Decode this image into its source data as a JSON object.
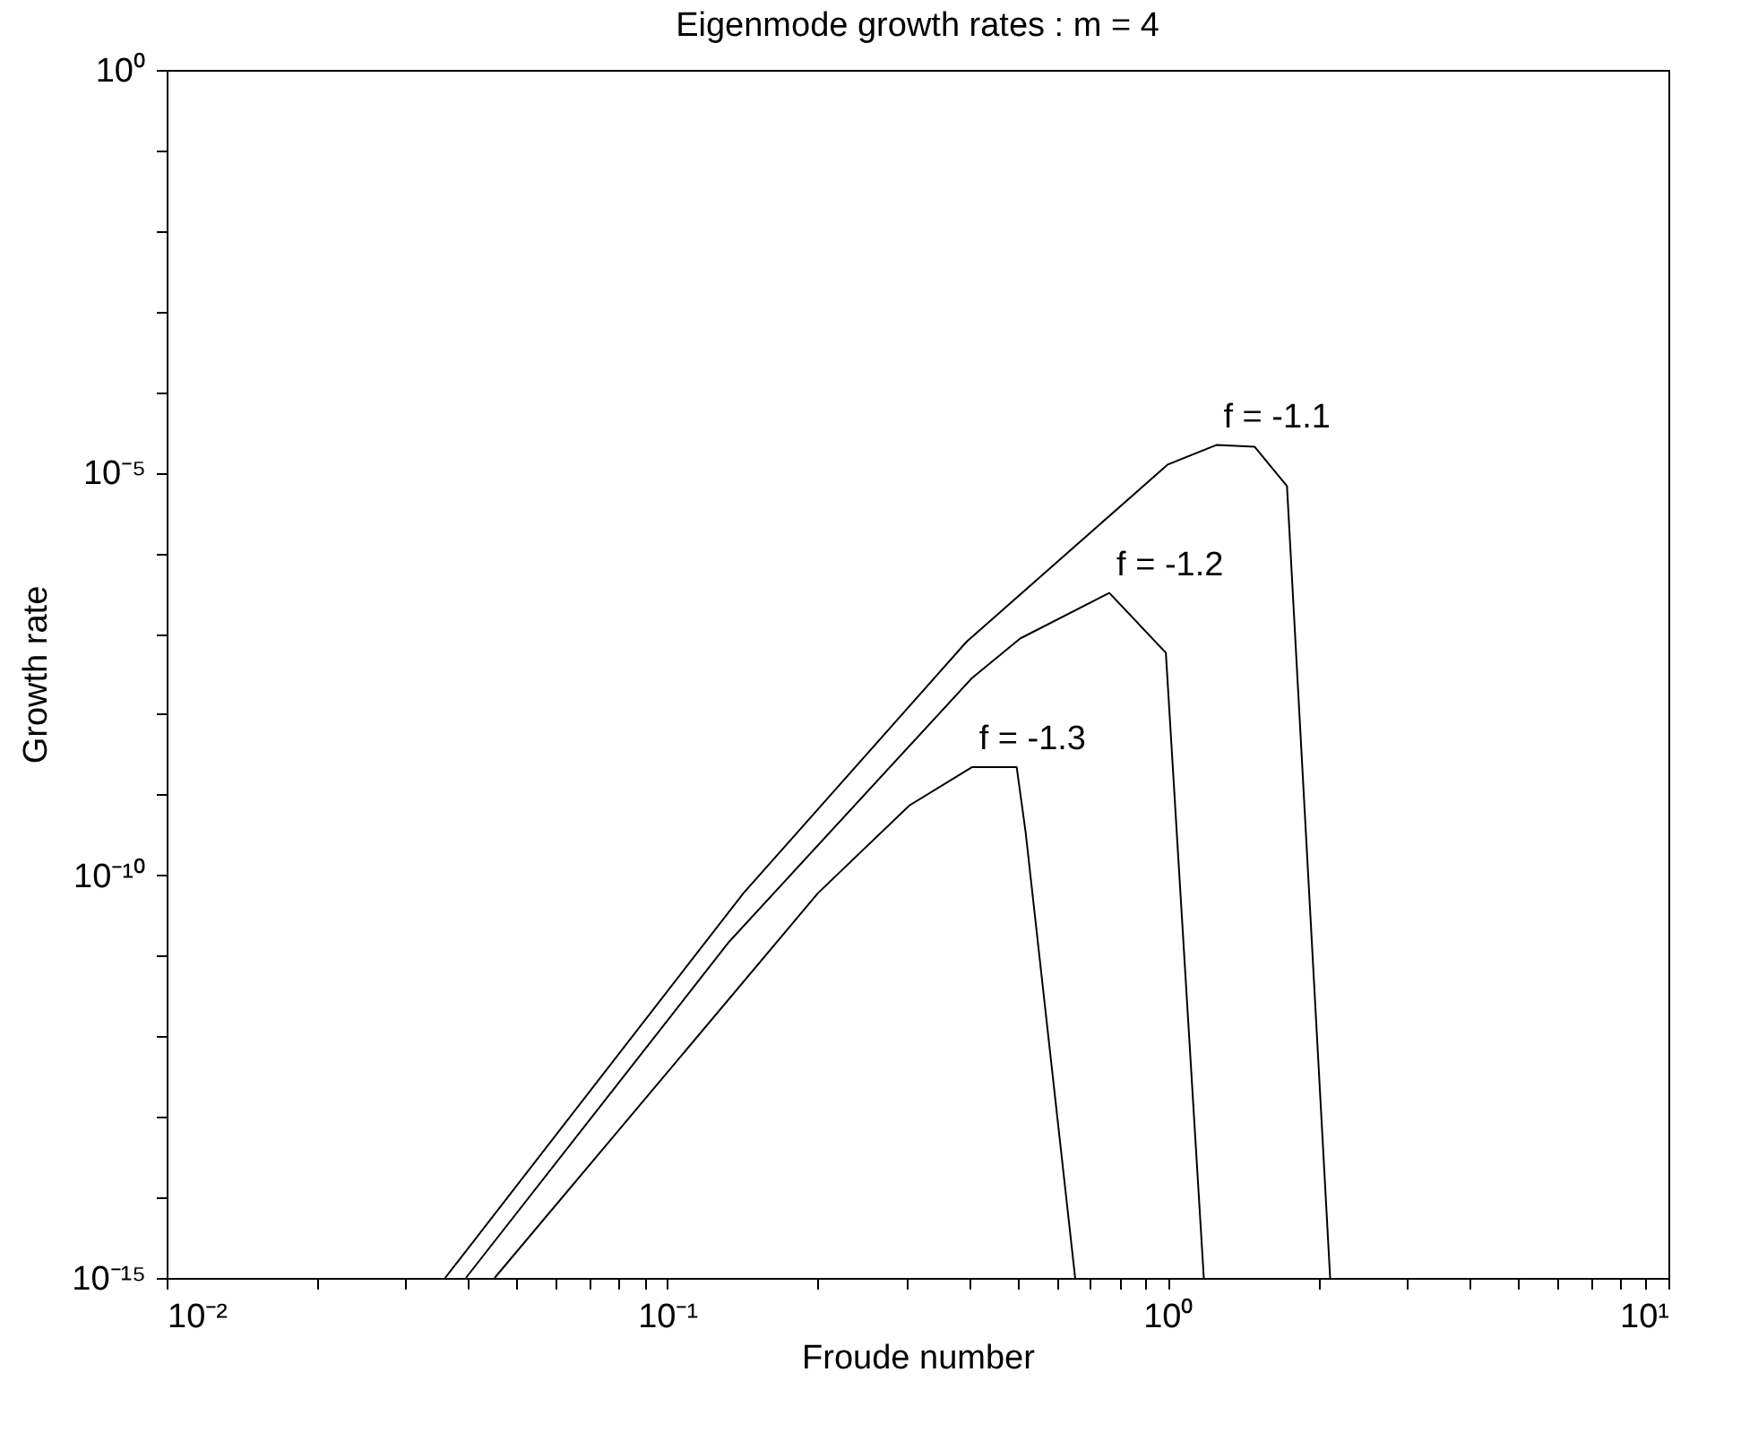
{
  "chart_data": {
    "type": "line",
    "title": "Eigenmode growth rates : m = 4",
    "xlabel": "Froude number",
    "ylabel": "Growth rate",
    "log": "xy",
    "grid": false,
    "legend": false,
    "marker": "none",
    "line_style": "solid",
    "xlim": [
      0.01,
      10
    ],
    "ylim": [
      1e-15,
      1
    ],
    "xticks": [
      {
        "value": 0.01,
        "label": "10⁻²"
      },
      {
        "value": 0.02,
        "label": null
      },
      {
        "value": 0.03,
        "label": null
      },
      {
        "value": 0.04,
        "label": null
      },
      {
        "value": 0.05,
        "label": null
      },
      {
        "value": 0.06,
        "label": null
      },
      {
        "value": 0.07,
        "label": null
      },
      {
        "value": 0.08,
        "label": null
      },
      {
        "value": 0.09,
        "label": null
      },
      {
        "value": 0.1,
        "label": "10⁻¹"
      },
      {
        "value": 0.2,
        "label": null
      },
      {
        "value": 0.3,
        "label": null
      },
      {
        "value": 0.4,
        "label": null
      },
      {
        "value": 0.5,
        "label": null
      },
      {
        "value": 0.6,
        "label": null
      },
      {
        "value": 0.7,
        "label": null
      },
      {
        "value": 0.8,
        "label": null
      },
      {
        "value": 0.9,
        "label": null
      },
      {
        "value": 1,
        "label": "10⁰"
      },
      {
        "value": 2,
        "label": null
      },
      {
        "value": 3,
        "label": null
      },
      {
        "value": 4,
        "label": null
      },
      {
        "value": 5,
        "label": null
      },
      {
        "value": 6,
        "label": null
      },
      {
        "value": 7,
        "label": null
      },
      {
        "value": 8,
        "label": null
      },
      {
        "value": 9,
        "label": null
      },
      {
        "value": 10,
        "label": "10¹"
      }
    ],
    "yticks": [
      {
        "value": 1e-15,
        "label": "10⁻¹⁵"
      },
      {
        "value": 1e-14,
        "label": null
      },
      {
        "value": 1e-13,
        "label": null
      },
      {
        "value": 1e-12,
        "label": null
      },
      {
        "value": 1e-11,
        "label": null
      },
      {
        "value": 1e-10,
        "label": "10⁻¹⁰"
      },
      {
        "value": 1e-09,
        "label": null
      },
      {
        "value": 1e-08,
        "label": null
      },
      {
        "value": 1e-07,
        "label": null
      },
      {
        "value": 1e-06,
        "label": null
      },
      {
        "value": 1e-05,
        "label": "10⁻⁵"
      },
      {
        "value": 0.0001,
        "label": null
      },
      {
        "value": 0.001,
        "label": null
      },
      {
        "value": 0.01,
        "label": null
      },
      {
        "value": 0.1,
        "label": null
      },
      {
        "value": 1,
        "label": "10⁰"
      }
    ],
    "series": [
      {
        "name": "f = -1.1",
        "color": "#000000",
        "x": [
          0.036,
          0.142,
          0.396,
          1.0,
          1.25,
          1.49,
          1.73,
          2.11
        ],
        "values": [
          1e-15,
          6e-11,
          7.9e-08,
          1.26e-05,
          2.2e-05,
          2.1e-05,
          6.8e-06,
          1e-15
        ]
      },
      {
        "name": "f = -1.2",
        "color": "#000000",
        "x": [
          0.0396,
          0.133,
          0.406,
          0.507,
          0.764,
          0.991,
          1.18
        ],
        "values": [
          1e-15,
          1.5e-11,
          2.8e-08,
          8.7e-08,
          3.2e-07,
          5.8e-08,
          1e-15
        ]
      },
      {
        "name": "f = -1.3",
        "color": "#000000",
        "x": [
          0.0452,
          0.2,
          0.305,
          0.406,
          0.499,
          0.52,
          0.653
        ],
        "values": [
          1e-15,
          6e-11,
          7.4e-10,
          2.2e-09,
          2.2e-09,
          3.4e-10,
          1e-15
        ]
      }
    ]
  }
}
